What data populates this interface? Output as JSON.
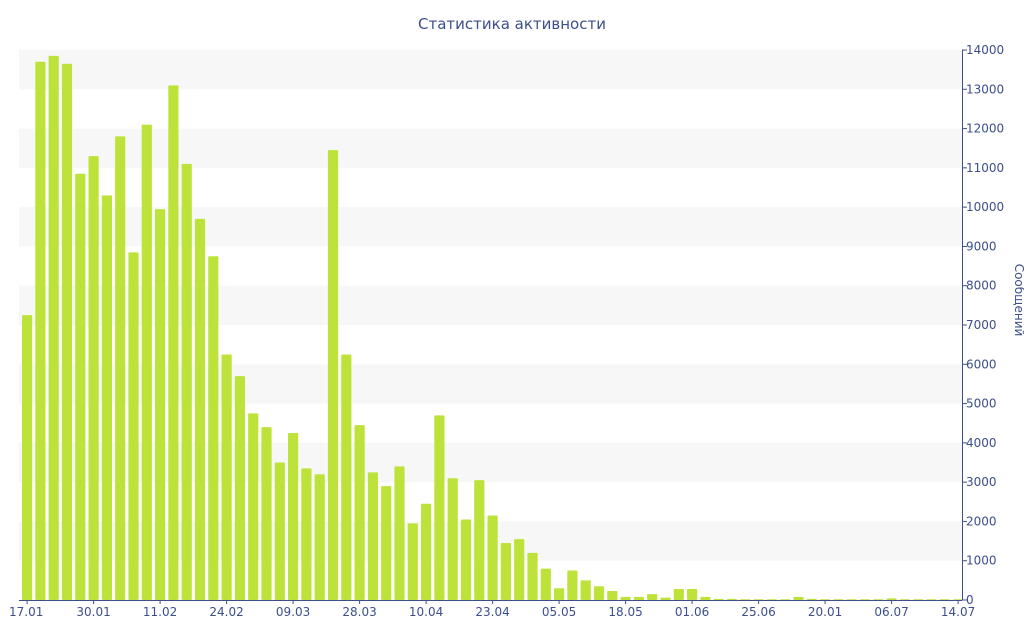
{
  "chart_data": {
    "type": "bar",
    "title": "Статистика активности",
    "xlabel": "",
    "ylabel": "Сообщений",
    "ylim": [
      0,
      14000
    ],
    "y_ticks": [
      0,
      1000,
      2000,
      3000,
      4000,
      5000,
      6000,
      7000,
      8000,
      9000,
      10000,
      11000,
      12000,
      13000,
      14000
    ],
    "y_axis_side": "right",
    "x_tick_labels": [
      {
        "label": "17.01",
        "index": 0
      },
      {
        "label": "30.01",
        "index": 5
      },
      {
        "label": "11.02",
        "index": 10
      },
      {
        "label": "24.02",
        "index": 15
      },
      {
        "label": "09.03",
        "index": 20
      },
      {
        "label": "28.03",
        "index": 25
      },
      {
        "label": "10.04",
        "index": 30
      },
      {
        "label": "23.04",
        "index": 35
      },
      {
        "label": "05.05",
        "index": 40
      },
      {
        "label": "18.05",
        "index": 45
      },
      {
        "label": "01.06",
        "index": 50
      },
      {
        "label": "25.06",
        "index": 55
      },
      {
        "label": "20.01",
        "index": 60
      },
      {
        "label": "06.07",
        "index": 65
      },
      {
        "label": "14.07",
        "index": 70
      }
    ],
    "bar_color": "#bde33a",
    "band_color": "#f7f7f7",
    "axis_color": "#3c4f8c",
    "grid": "alternating horizontal bands",
    "values": [
      7250,
      13700,
      13850,
      13650,
      10850,
      11300,
      10300,
      11800,
      8850,
      12100,
      9950,
      13100,
      11100,
      9700,
      8750,
      6250,
      5700,
      4750,
      4400,
      3500,
      4250,
      3350,
      3200,
      11450,
      6250,
      4450,
      3250,
      2900,
      3400,
      1950,
      2450,
      4700,
      3100,
      2050,
      3050,
      2150,
      1450,
      1550,
      1200,
      800,
      300,
      750,
      500,
      350,
      230,
      80,
      80,
      150,
      60,
      280,
      280,
      80,
      30,
      30,
      20,
      20,
      20,
      20,
      80,
      30,
      20,
      20,
      20,
      20,
      20,
      40,
      20,
      20,
      20,
      20,
      20
    ]
  }
}
